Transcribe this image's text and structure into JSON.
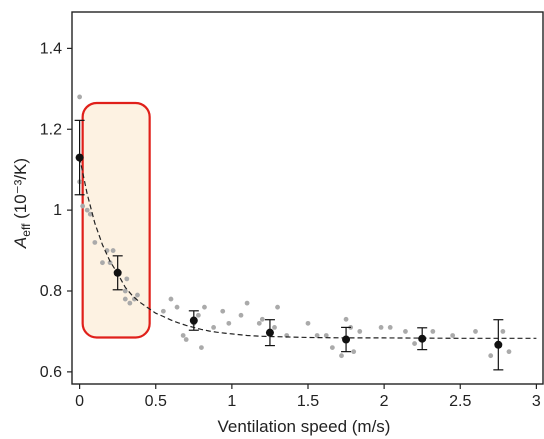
{
  "chart_data": {
    "type": "scatter",
    "title": "",
    "xlabel": "Ventilation speed (m/s)",
    "ylabel": {
      "symbol": "A",
      "subscript": "eff",
      "unit": " (10⁻³/K)"
    },
    "xlim": [
      -0.05,
      3.05
    ],
    "ylim": [
      0.57,
      1.49
    ],
    "xticks": [
      0,
      0.5,
      1,
      1.5,
      2,
      2.5,
      3
    ],
    "xtick_labels": [
      "0",
      "0.5",
      "1",
      "1.5",
      "2",
      "2.5",
      "3"
    ],
    "yticks": [
      0.6,
      0.8,
      1.0,
      1.2,
      1.4
    ],
    "ytick_labels": [
      "0.6",
      "0.8",
      "1",
      "1.2",
      "1.4"
    ],
    "grid": false,
    "series": [
      {
        "kind": "raw-points",
        "color": "#aaaaaa",
        "x": [
          0.0,
          0.0,
          0.02,
          0.05,
          0.07,
          0.1,
          0.15,
          0.18,
          0.2,
          0.22,
          0.25,
          0.3,
          0.3,
          0.31,
          0.33,
          0.36,
          0.38,
          0.55,
          0.6,
          0.64,
          0.68,
          0.7,
          0.75,
          0.78,
          0.8,
          0.82,
          0.88,
          0.94,
          0.98,
          1.06,
          1.1,
          1.18,
          1.2,
          1.28,
          1.3,
          1.36,
          1.5,
          1.56,
          1.62,
          1.66,
          1.72,
          1.75,
          1.78,
          1.8,
          1.84,
          1.98,
          2.04,
          2.14,
          2.2,
          2.32,
          2.45,
          2.6,
          2.7,
          2.78,
          2.82
        ],
        "y": [
          1.28,
          1.07,
          1.01,
          1.0,
          0.99,
          0.92,
          0.87,
          0.9,
          0.87,
          0.9,
          0.85,
          0.8,
          0.78,
          0.83,
          0.77,
          0.78,
          0.79,
          0.75,
          0.78,
          0.76,
          0.69,
          0.68,
          0.72,
          0.74,
          0.66,
          0.76,
          0.71,
          0.75,
          0.72,
          0.74,
          0.77,
          0.72,
          0.73,
          0.71,
          0.76,
          0.69,
          0.72,
          0.69,
          0.69,
          0.66,
          0.64,
          0.73,
          0.71,
          0.65,
          0.7,
          0.71,
          0.71,
          0.7,
          0.67,
          0.7,
          0.69,
          0.7,
          0.64,
          0.7,
          0.65
        ]
      },
      {
        "kind": "means-with-error",
        "color": "#111111",
        "x": [
          0,
          0.25,
          0.75,
          1.25,
          1.75,
          2.25,
          2.75
        ],
        "y": [
          1.13,
          0.845,
          0.727,
          0.697,
          0.68,
          0.682,
          0.667
        ],
        "yerr": [
          0.092,
          0.042,
          0.024,
          0.032,
          0.03,
          0.027,
          0.062
        ]
      },
      {
        "kind": "fit",
        "style": "dashed",
        "color": "#222222",
        "x": [
          0,
          0.05,
          0.1,
          0.15,
          0.2,
          0.25,
          0.3,
          0.35,
          0.4,
          0.45,
          0.5,
          0.55,
          0.6,
          0.65,
          0.7,
          0.75,
          0.8,
          0.85,
          0.9,
          0.95,
          1.0,
          1.1,
          1.2,
          1.3,
          1.4,
          1.5,
          1.75,
          2.0,
          2.5,
          3.0
        ],
        "y": [
          1.13,
          1.04,
          0.968,
          0.914,
          0.873,
          0.843,
          0.809,
          0.787,
          0.771,
          0.758,
          0.745,
          0.737,
          0.728,
          0.721,
          0.715,
          0.71,
          0.705,
          0.701,
          0.698,
          0.696,
          0.694,
          0.69,
          0.688,
          0.687,
          0.686,
          0.685,
          0.684,
          0.684,
          0.683,
          0.683
        ]
      }
    ],
    "highlight": {
      "x_range": [
        0.02,
        0.46
      ],
      "y_range": [
        0.685,
        1.265
      ],
      "stroke": "#e0201a",
      "fill": "#fdf2e2"
    }
  }
}
